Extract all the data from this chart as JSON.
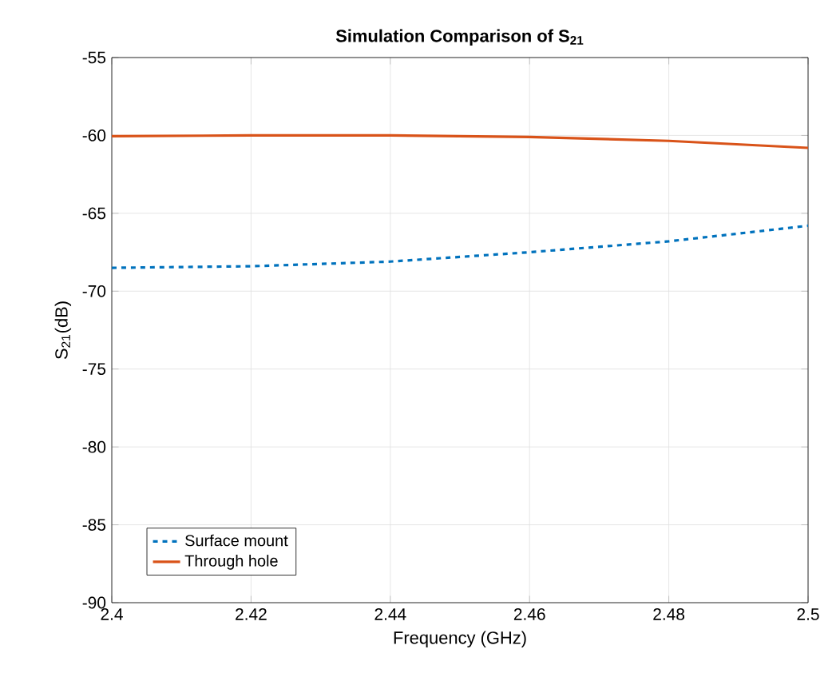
{
  "chart_data": {
    "type": "line",
    "title": "Simulation Comparison of S$_{21}$",
    "xlabel": "Frequency (GHz)",
    "ylabel": "S$_{21}$(dB)",
    "x": [
      2.4,
      2.42,
      2.44,
      2.46,
      2.48,
      2.5
    ],
    "series": [
      {
        "name": "Surface mount",
        "color": "#0072bd",
        "line_style": "dashed",
        "values": [
          -68.5,
          -68.4,
          -68.1,
          -67.5,
          -66.8,
          -65.8
        ]
      },
      {
        "name": "Through hole",
        "color": "#d95319",
        "line_style": "solid",
        "values": [
          -60.05,
          -60.0,
          -60.0,
          -60.1,
          -60.35,
          -60.8
        ]
      }
    ],
    "xlim": [
      2.4,
      2.5
    ],
    "ylim": [
      -90,
      -55
    ],
    "xticks": [
      2.4,
      2.42,
      2.44,
      2.46,
      2.48,
      2.5
    ],
    "yticks": [
      -90,
      -85,
      -80,
      -75,
      -70,
      -65,
      -60,
      -55
    ],
    "grid": true,
    "legend": "bottom left"
  }
}
